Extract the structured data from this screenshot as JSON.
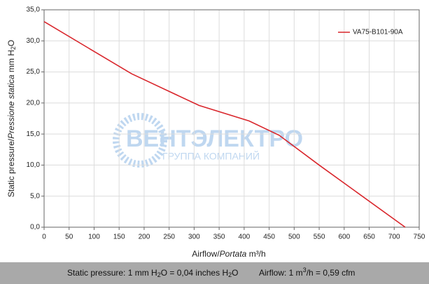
{
  "chart_data": {
    "type": "line",
    "y_label": [
      "Static pressure",
      "/",
      "Pressione statica",
      " mm H",
      "2",
      "O"
    ],
    "x_label": [
      "Airflow",
      "/",
      "Portata",
      " m³/h"
    ],
    "x": [
      0,
      175,
      310,
      410,
      470,
      550,
      722
    ],
    "series": [
      {
        "name": "VA75-B101-90A",
        "color": "#d9262c",
        "values": [
          33.1,
          24.7,
          19.6,
          17.1,
          14.8,
          10.0,
          0
        ]
      }
    ],
    "xlim": [
      0,
      750
    ],
    "xticks": [
      0,
      50,
      100,
      150,
      200,
      250,
      300,
      350,
      400,
      450,
      500,
      550,
      600,
      650,
      700,
      750
    ],
    "ylim": [
      0,
      35
    ],
    "yticks": [
      {
        "value": 0,
        "label": "0,0"
      },
      {
        "value": 5,
        "label": "5,0"
      },
      {
        "value": 10,
        "label": "10,0"
      },
      {
        "value": 15,
        "label": "15,0"
      },
      {
        "value": 20,
        "label": "20,0"
      },
      {
        "value": 25,
        "label": "25,0"
      },
      {
        "value": 30,
        "label": "30,0"
      },
      {
        "value": 35,
        "label": "35,0"
      }
    ],
    "grid": true,
    "legend": "upper right",
    "watermark": [
      "ВЕНТЭЛЕКТРО",
      "ГРУППА КОМПАНИЙ"
    ],
    "footer": {
      "pressure": [
        "Static pressure: 1 mm H",
        "2",
        "O = 0,04 inches H",
        "2",
        "O"
      ],
      "airflow": [
        "Airflow: 1 m",
        "3",
        "/h = 0,59 cfm"
      ]
    }
  }
}
